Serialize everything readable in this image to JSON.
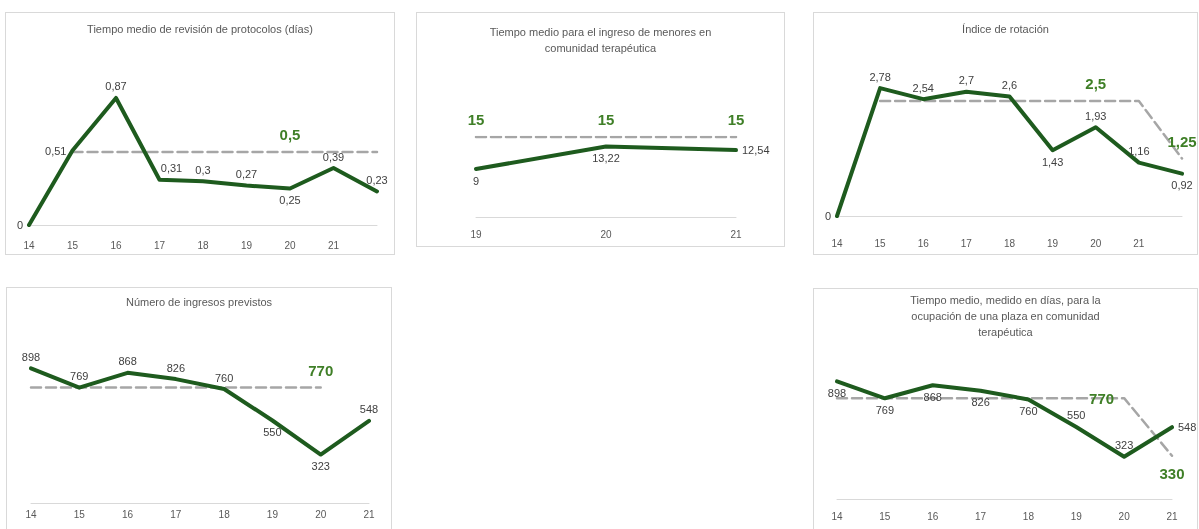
{
  "chart_data": [
    {
      "type": "line",
      "title": "Tiempo medio de revisión de protocolos (días)",
      "categories": [
        "14",
        "15",
        "16",
        "17",
        "18",
        "19",
        "20",
        "21",
        null
      ],
      "marker": "none",
      "tick_labels": "x",
      "series": [
        {
          "color": "#1e5b1e",
          "values": [
            0,
            0.51,
            0.87,
            0.31,
            0.3,
            0.27,
            0.25,
            0.39,
            0.23
          ],
          "value_labels": [
            "0",
            "0,51",
            "0,87",
            "0,31",
            "0,3",
            "0,27",
            "0,25",
            "0,39",
            "0,23"
          ]
        },
        {
          "color": "#a6a6a6",
          "line_style": "dashed",
          "values": [
            null,
            0.5,
            0.5,
            0.5,
            0.5,
            0.5,
            0.5,
            0.5,
            0.5
          ],
          "value_labels": [
            null,
            null,
            null,
            null,
            null,
            null,
            "0,5",
            null,
            null
          ]
        }
      ]
    },
    {
      "type": "line",
      "title": "Tiempo medio para el ingreso de menores en comunidad terapéutica",
      "categories": [
        "19",
        "20",
        "21"
      ],
      "marker": "none",
      "tick_labels": "x",
      "series": [
        {
          "color": "#1e5b1e",
          "values": [
            9,
            13.22,
            12.54
          ],
          "value_labels": [
            "9",
            "13,22",
            "12,54"
          ]
        },
        {
          "color": "#a6a6a6",
          "line_style": "dashed",
          "values": [
            15,
            15,
            15
          ],
          "value_labels": [
            "15",
            "15",
            "15"
          ]
        }
      ]
    },
    {
      "type": "line",
      "title": "Índice de rotación",
      "categories": [
        "14",
        "15",
        "16",
        "17",
        "18",
        "19",
        "20",
        "21",
        null
      ],
      "marker": "none",
      "tick_labels": "x",
      "series": [
        {
          "color": "#1e5b1e",
          "values": [
            0,
            2.78,
            2.54,
            2.7,
            2.6,
            1.43,
            1.93,
            1.16,
            0.92
          ],
          "value_labels": [
            "0",
            "2,78",
            "2,54",
            "2,7",
            "2,6",
            "1,43",
            "1,93",
            "1,16",
            "0,92"
          ]
        },
        {
          "color": "#a6a6a6",
          "line_style": "dashed",
          "values": [
            null,
            2.5,
            2.5,
            2.5,
            2.5,
            2.5,
            2.5,
            2.5,
            1.25
          ],
          "value_labels": [
            null,
            null,
            null,
            null,
            null,
            null,
            "2,5",
            null,
            "1,25"
          ]
        }
      ]
    },
    {
      "type": "line",
      "title": "Número de ingresos previstos",
      "categories": [
        "14",
        "15",
        "16",
        "17",
        "18",
        "19",
        "20",
        "21"
      ],
      "marker": "none",
      "tick_labels": "x",
      "series": [
        {
          "color": "#1e5b1e",
          "values": [
            898,
            769,
            868,
            826,
            760,
            550,
            323,
            548
          ],
          "value_labels": [
            "898",
            "769",
            "868",
            "826",
            "760",
            "550",
            "323",
            "548"
          ]
        },
        {
          "color": "#a6a6a6",
          "line_style": "dashed",
          "values": [
            770,
            770,
            770,
            770,
            770,
            770,
            770,
            null
          ],
          "value_labels": [
            null,
            null,
            null,
            null,
            null,
            null,
            "770",
            null
          ]
        }
      ]
    },
    {
      "type": "line",
      "title": "Tiempo medio, medido en días, para la ocupación de una plaza en comunidad terapéutica",
      "categories": [
        "14",
        "15",
        "16",
        "17",
        "18",
        "19",
        "20",
        "21"
      ],
      "marker": "none",
      "tick_labels": "x",
      "series": [
        {
          "color": "#1e5b1e",
          "values": [
            898,
            769,
            868,
            826,
            760,
            550,
            323,
            548
          ],
          "value_labels": [
            "898",
            "769",
            "868",
            "826",
            "760",
            "550",
            "323",
            "548"
          ]
        },
        {
          "color": "#a6a6a6",
          "line_style": "dashed",
          "values": [
            770,
            770,
            770,
            770,
            770,
            770,
            770,
            330
          ],
          "value_labels": [
            null,
            null,
            null,
            null,
            null,
            null,
            "770",
            "330"
          ]
        }
      ]
    }
  ]
}
